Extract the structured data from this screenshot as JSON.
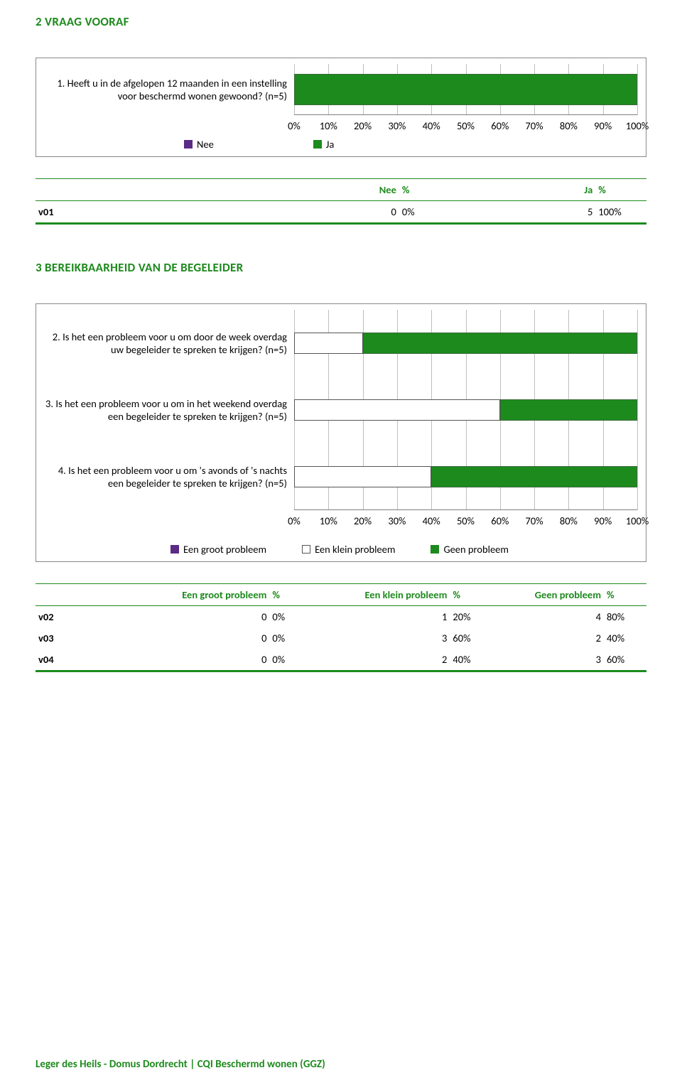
{
  "colors": {
    "green": "#1d8a1d",
    "purple": "#5b2c85",
    "outline": "#888888",
    "gridline": "#bfbfbf",
    "barBorder": "#3a6a3a",
    "white": "#ffffff"
  },
  "section2": {
    "heading": "2 VRAAG VOORAF",
    "chart": {
      "type": "stacked-bar",
      "question": "1. Heeft u in de afgelopen 12 maanden in een instelling voor beschermd wonen gewoond? (n=5)",
      "xlim": [
        0,
        100
      ],
      "xtick_step": 10,
      "xticks": [
        "0%",
        "10%",
        "20%",
        "30%",
        "40%",
        "50%",
        "60%",
        "70%",
        "80%",
        "90%",
        "100%"
      ],
      "series": [
        {
          "name": "Nee",
          "color": "#5b2c85",
          "label": "Nee"
        },
        {
          "name": "Ja",
          "color": "#1d8a1d",
          "label": "Ja"
        }
      ],
      "bar": {
        "nee": 0,
        "ja": 100
      }
    },
    "table": {
      "headers": [
        "Nee",
        "%",
        "Ja",
        "%"
      ],
      "rows": [
        {
          "id": "v01",
          "nee_n": "0",
          "nee_pct": "0%",
          "ja_n": "5",
          "ja_pct": "100%"
        }
      ]
    }
  },
  "section3": {
    "heading": "3 BEREIKBAARHEID VAN DE BEGELEIDER",
    "chart": {
      "type": "stacked-bar",
      "xlim": [
        0,
        100
      ],
      "xtick_step": 10,
      "xticks": [
        "0%",
        "10%",
        "20%",
        "30%",
        "40%",
        "50%",
        "60%",
        "70%",
        "80%",
        "90%",
        "100%"
      ],
      "series": [
        {
          "name": "groot",
          "label": "Een groot probleem",
          "fill": "#5b2c85",
          "border": "#5b2c85"
        },
        {
          "name": "klein",
          "label": "Een klein probleem",
          "fill": "#ffffff",
          "border": "#555555"
        },
        {
          "name": "geen",
          "label": "Geen probleem",
          "fill": "#1d8a1d",
          "border": "#3a6a3a"
        }
      ],
      "questions": [
        {
          "num": 2,
          "text": "2. Is het een probleem voor u om door de week overdag uw begeleider te spreken te krijgen? (n=5)",
          "groot": 0,
          "klein": 20,
          "geen": 80
        },
        {
          "num": 3,
          "text": "3. Is het een probleem voor u om in het weekend overdag een begeleider te spreken te krijgen? (n=5)",
          "groot": 0,
          "klein": 60,
          "geen": 40
        },
        {
          "num": 4,
          "text": "4. Is het een probleem voor u om 's avonds of 's nachts een begeleider te spreken te krijgen? (n=5)",
          "groot": 0,
          "klein": 40,
          "geen": 60
        }
      ]
    },
    "table": {
      "headers": [
        "Een groot probleem",
        "%",
        "Een klein probleem",
        "%",
        "Geen probleem",
        "%"
      ],
      "rows": [
        {
          "id": "v02",
          "groot_n": "0",
          "groot_pct": "0%",
          "klein_n": "1",
          "klein_pct": "20%",
          "geen_n": "4",
          "geen_pct": "80%"
        },
        {
          "id": "v03",
          "groot_n": "0",
          "groot_pct": "0%",
          "klein_n": "3",
          "klein_pct": "60%",
          "geen_n": "2",
          "geen_pct": "40%"
        },
        {
          "id": "v04",
          "groot_n": "0",
          "groot_pct": "0%",
          "klein_n": "2",
          "klein_pct": "40%",
          "geen_n": "3",
          "geen_pct": "60%"
        }
      ]
    }
  },
  "footer": "Leger des Heils - Domus Dordrecht | CQI Beschermd wonen (GGZ)"
}
